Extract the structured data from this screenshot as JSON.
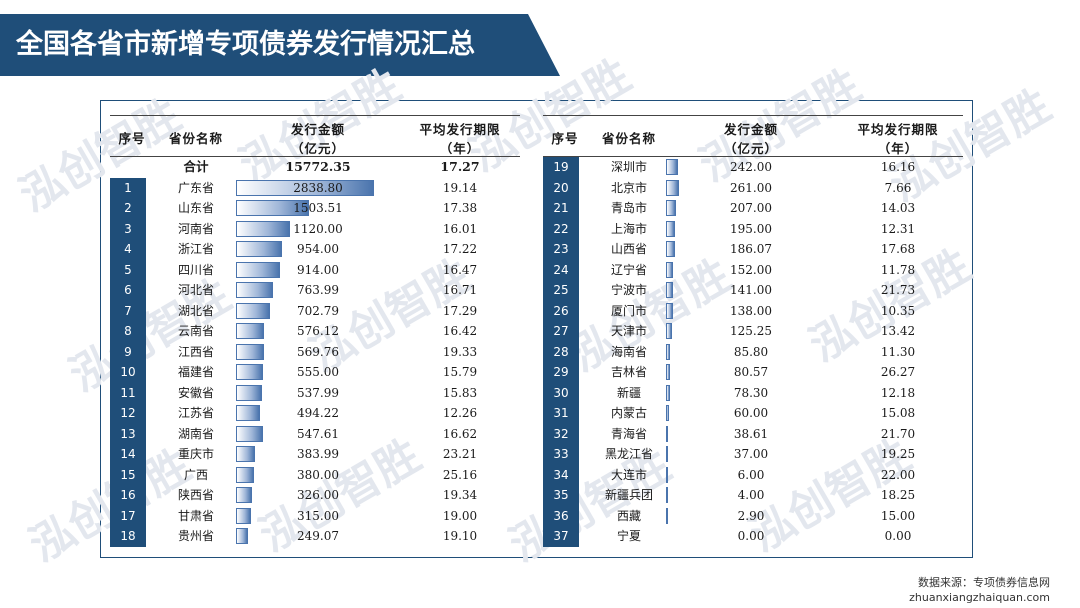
{
  "title": "全国各省市新增专项债券发行情况汇总",
  "watermark": "泓创智胜",
  "headers": {
    "index": "序号",
    "name": "省份名称",
    "amount_line1": "发行金额",
    "amount_line2": "（亿元）",
    "term_line1": "平均发行期限",
    "term_line2": "（年）"
  },
  "total": {
    "label": "合计",
    "amount": "15772.35",
    "term": "17.27"
  },
  "left_rows": [
    {
      "idx": "1",
      "name": "广东省",
      "amount": "2838.80",
      "term": "19.14",
      "value": 2838.8
    },
    {
      "idx": "2",
      "name": "山东省",
      "amount": "1503.51",
      "term": "17.38",
      "value": 1503.51
    },
    {
      "idx": "3",
      "name": "河南省",
      "amount": "1120.00",
      "term": "16.01",
      "value": 1120.0
    },
    {
      "idx": "4",
      "name": "浙江省",
      "amount": "954.00",
      "term": "17.22",
      "value": 954.0
    },
    {
      "idx": "5",
      "name": "四川省",
      "amount": "914.00",
      "term": "16.47",
      "value": 914.0
    },
    {
      "idx": "6",
      "name": "河北省",
      "amount": "763.99",
      "term": "16.71",
      "value": 763.99
    },
    {
      "idx": "7",
      "name": "湖北省",
      "amount": "702.79",
      "term": "17.29",
      "value": 702.79
    },
    {
      "idx": "8",
      "name": "云南省",
      "amount": "576.12",
      "term": "16.42",
      "value": 576.12
    },
    {
      "idx": "9",
      "name": "江西省",
      "amount": "569.76",
      "term": "19.33",
      "value": 569.76
    },
    {
      "idx": "10",
      "name": "福建省",
      "amount": "555.00",
      "term": "15.79",
      "value": 555.0
    },
    {
      "idx": "11",
      "name": "安徽省",
      "amount": "537.99",
      "term": "15.83",
      "value": 537.99
    },
    {
      "idx": "12",
      "name": "江苏省",
      "amount": "494.22",
      "term": "12.26",
      "value": 494.22
    },
    {
      "idx": "13",
      "name": "湖南省",
      "amount": "547.61",
      "term": "16.62",
      "value": 547.61
    },
    {
      "idx": "14",
      "name": "重庆市",
      "amount": "383.99",
      "term": "23.21",
      "value": 383.99
    },
    {
      "idx": "15",
      "name": "广西",
      "amount": "380.00",
      "term": "25.16",
      "value": 380.0
    },
    {
      "idx": "16",
      "name": "陕西省",
      "amount": "326.00",
      "term": "19.34",
      "value": 326.0
    },
    {
      "idx": "17",
      "name": "甘肃省",
      "amount": "315.00",
      "term": "19.00",
      "value": 315.0
    },
    {
      "idx": "18",
      "name": "贵州省",
      "amount": "249.07",
      "term": "19.10",
      "value": 249.07
    }
  ],
  "right_rows": [
    {
      "idx": "19",
      "name": "深圳市",
      "amount": "242.00",
      "term": "16.16",
      "value": 242.0
    },
    {
      "idx": "20",
      "name": "北京市",
      "amount": "261.00",
      "term": "7.66",
      "value": 261.0
    },
    {
      "idx": "21",
      "name": "青岛市",
      "amount": "207.00",
      "term": "14.03",
      "value": 207.0
    },
    {
      "idx": "22",
      "name": "上海市",
      "amount": "195.00",
      "term": "12.31",
      "value": 195.0
    },
    {
      "idx": "23",
      "name": "山西省",
      "amount": "186.07",
      "term": "17.68",
      "value": 186.07
    },
    {
      "idx": "24",
      "name": "辽宁省",
      "amount": "152.00",
      "term": "11.78",
      "value": 152.0
    },
    {
      "idx": "25",
      "name": "宁波市",
      "amount": "141.00",
      "term": "21.73",
      "value": 141.0
    },
    {
      "idx": "26",
      "name": "厦门市",
      "amount": "138.00",
      "term": "10.35",
      "value": 138.0
    },
    {
      "idx": "27",
      "name": "天津市",
      "amount": "125.25",
      "term": "13.42",
      "value": 125.25
    },
    {
      "idx": "28",
      "name": "海南省",
      "amount": "85.80",
      "term": "11.30",
      "value": 85.8
    },
    {
      "idx": "29",
      "name": "吉林省",
      "amount": "80.57",
      "term": "26.27",
      "value": 80.57
    },
    {
      "idx": "30",
      "name": "新疆",
      "amount": "78.30",
      "term": "12.18",
      "value": 78.3
    },
    {
      "idx": "31",
      "name": "内蒙古",
      "amount": "60.00",
      "term": "15.08",
      "value": 60.0
    },
    {
      "idx": "32",
      "name": "青海省",
      "amount": "38.61",
      "term": "21.70",
      "value": 38.61
    },
    {
      "idx": "33",
      "name": "黑龙江省",
      "amount": "37.00",
      "term": "19.25",
      "value": 37.0
    },
    {
      "idx": "34",
      "name": "大连市",
      "amount": "6.00",
      "term": "22.00",
      "value": 6.0
    },
    {
      "idx": "35",
      "name": "新疆兵团",
      "amount": "4.00",
      "term": "18.25",
      "value": 4.0
    },
    {
      "idx": "36",
      "name": "西藏",
      "amount": "2.90",
      "term": "15.00",
      "value": 2.9
    },
    {
      "idx": "37",
      "name": "宁夏",
      "amount": "0.00",
      "term": "0.00",
      "value": 0.0
    }
  ],
  "max_value": 2838.8,
  "footer": {
    "source": "数据来源：专项债券信息网",
    "url": "zhuanxiangzhaiquan.com"
  }
}
